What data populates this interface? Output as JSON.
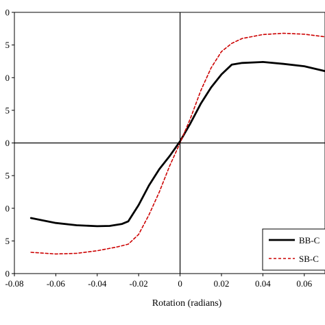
{
  "chart_data": {
    "type": "line",
    "title": "",
    "xlabel": "Rotation (radians)",
    "ylabel": "",
    "xlim": [
      -0.08,
      0.07
    ],
    "ylim": [
      0,
      8
    ],
    "x_ticks": [
      {
        "value": -0.08,
        "label": "-0.08"
      },
      {
        "value": -0.06,
        "label": "-0.06"
      },
      {
        "value": -0.04,
        "label": "-0.04"
      },
      {
        "value": -0.02,
        "label": "-0.02"
      },
      {
        "value": 0,
        "label": "0"
      },
      {
        "value": 0.02,
        "label": "0.02"
      },
      {
        "value": 0.04,
        "label": "0.04"
      },
      {
        "value": 0.06,
        "label": "0.06"
      }
    ],
    "y_ticks": [
      {
        "value": 0,
        "label": "0"
      },
      {
        "value": 1,
        "label": "5"
      },
      {
        "value": 2,
        "label": "0"
      },
      {
        "value": 3,
        "label": "5"
      },
      {
        "value": 4,
        "label": "0"
      },
      {
        "value": 5,
        "label": "5"
      },
      {
        "value": 6,
        "label": "0"
      },
      {
        "value": 7,
        "label": "5"
      },
      {
        "value": 8,
        "label": "0"
      }
    ],
    "grid": false,
    "legend_position": "bottom-right",
    "series": [
      {
        "name": "BB-C",
        "color": "#000000",
        "dash": "solid",
        "x": [
          -0.072,
          -0.06,
          -0.05,
          -0.04,
          -0.034,
          -0.028,
          -0.025,
          -0.02,
          -0.015,
          -0.01,
          -0.005,
          0,
          0.005,
          0.01,
          0.015,
          0.02,
          0.025,
          0.03,
          0.04,
          0.05,
          0.06,
          0.07
        ],
        "y": [
          1.7,
          1.55,
          1.48,
          1.45,
          1.46,
          1.52,
          1.6,
          2.1,
          2.7,
          3.2,
          3.6,
          4.05,
          4.6,
          5.2,
          5.7,
          6.1,
          6.4,
          6.45,
          6.48,
          6.42,
          6.35,
          6.2
        ]
      },
      {
        "name": "SB-C",
        "color": "#cc0000",
        "dash": "dashed",
        "x": [
          -0.072,
          -0.06,
          -0.05,
          -0.04,
          -0.03,
          -0.025,
          -0.02,
          -0.015,
          -0.01,
          -0.005,
          0,
          0.005,
          0.01,
          0.015,
          0.02,
          0.025,
          0.03,
          0.04,
          0.05,
          0.06,
          0.07
        ],
        "y": [
          0.65,
          0.6,
          0.62,
          0.7,
          0.82,
          0.9,
          1.2,
          1.8,
          2.5,
          3.3,
          4.0,
          4.75,
          5.6,
          6.3,
          6.8,
          7.05,
          7.2,
          7.32,
          7.36,
          7.33,
          7.25
        ]
      }
    ]
  }
}
